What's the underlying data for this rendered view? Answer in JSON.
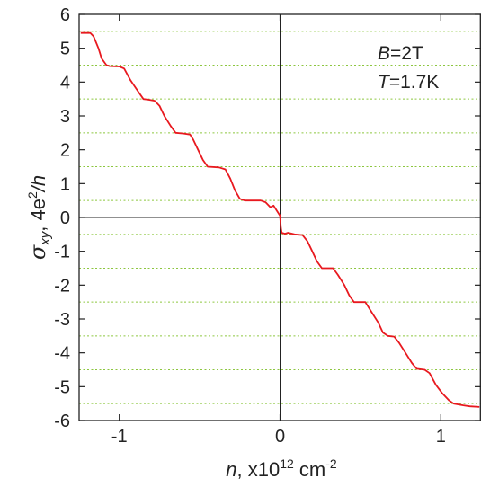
{
  "chart_data": {
    "type": "line",
    "title": "",
    "xlabel": {
      "var": "n",
      "rest": ", x10",
      "exp": "12",
      "unit": " cm",
      "unit_exp": "-2"
    },
    "ylabel": {
      "var": "σ",
      "sub": "xy",
      "rest": ", 4e",
      "exp": "2",
      "tail": "/h"
    },
    "xlim": [
      -1.25,
      1.25
    ],
    "ylim": [
      -6,
      6
    ],
    "xticks": [
      {
        "value": -1,
        "label": "-1"
      },
      {
        "value": 0,
        "label": "0"
      },
      {
        "value": 1,
        "label": "1"
      }
    ],
    "yticks": [
      {
        "value": 6,
        "label": "6"
      },
      {
        "value": 5,
        "label": "5"
      },
      {
        "value": 4,
        "label": "4"
      },
      {
        "value": 3,
        "label": "3"
      },
      {
        "value": 2,
        "label": "2"
      },
      {
        "value": 1,
        "label": "1"
      },
      {
        "value": 0,
        "label": "0"
      },
      {
        "value": -1,
        "label": "-1"
      },
      {
        "value": -2,
        "label": "-2"
      },
      {
        "value": -3,
        "label": "-3"
      },
      {
        "value": -4,
        "label": "-4"
      },
      {
        "value": -5,
        "label": "-5"
      },
      {
        "value": -6,
        "label": "-6"
      }
    ],
    "reference_lines": [
      5.5,
      4.5,
      3.5,
      2.5,
      1.5,
      0.5,
      -0.5,
      -1.5,
      -2.5,
      -3.5,
      -4.5,
      -5.5
    ],
    "annotations": [
      {
        "var": "B",
        "text": "=2T"
      },
      {
        "var": "T",
        "text": "=1.7K"
      }
    ],
    "series": [
      {
        "color": "#e8191f",
        "points": [
          [
            -1.24,
            5.45
          ],
          [
            -1.18,
            5.45
          ],
          [
            -1.16,
            5.35
          ],
          [
            -1.13,
            5.0
          ],
          [
            -1.11,
            4.7
          ],
          [
            -1.08,
            4.5
          ],
          [
            -1.06,
            4.47
          ],
          [
            -1.0,
            4.46
          ],
          [
            -0.97,
            4.4
          ],
          [
            -0.93,
            4.05
          ],
          [
            -0.88,
            3.7
          ],
          [
            -0.85,
            3.5
          ],
          [
            -0.82,
            3.48
          ],
          [
            -0.78,
            3.45
          ],
          [
            -0.75,
            3.3
          ],
          [
            -0.72,
            3.0
          ],
          [
            -0.68,
            2.7
          ],
          [
            -0.65,
            2.5
          ],
          [
            -0.6,
            2.48
          ],
          [
            -0.56,
            2.45
          ],
          [
            -0.54,
            2.3
          ],
          [
            -0.51,
            2.0
          ],
          [
            -0.48,
            1.7
          ],
          [
            -0.45,
            1.5
          ],
          [
            -0.38,
            1.48
          ],
          [
            -0.34,
            1.42
          ],
          [
            -0.31,
            1.15
          ],
          [
            -0.28,
            0.8
          ],
          [
            -0.25,
            0.55
          ],
          [
            -0.22,
            0.5
          ],
          [
            -0.12,
            0.5
          ],
          [
            -0.09,
            0.45
          ],
          [
            -0.06,
            0.3
          ],
          [
            -0.04,
            0.35
          ],
          [
            -0.02,
            0.2
          ],
          [
            0.0,
            0.05
          ],
          [
            0.005,
            -0.3
          ],
          [
            0.01,
            -0.45
          ],
          [
            0.03,
            -0.48
          ],
          [
            0.05,
            -0.45
          ],
          [
            0.09,
            -0.5
          ],
          [
            0.14,
            -0.52
          ],
          [
            0.17,
            -0.7
          ],
          [
            0.2,
            -1.0
          ],
          [
            0.23,
            -1.3
          ],
          [
            0.26,
            -1.5
          ],
          [
            0.33,
            -1.5
          ],
          [
            0.36,
            -1.7
          ],
          [
            0.4,
            -2.0
          ],
          [
            0.43,
            -2.3
          ],
          [
            0.46,
            -2.5
          ],
          [
            0.53,
            -2.5
          ],
          [
            0.57,
            -2.8
          ],
          [
            0.61,
            -3.1
          ],
          [
            0.64,
            -3.4
          ],
          [
            0.67,
            -3.5
          ],
          [
            0.71,
            -3.52
          ],
          [
            0.74,
            -3.7
          ],
          [
            0.78,
            -4.0
          ],
          [
            0.82,
            -4.3
          ],
          [
            0.85,
            -4.47
          ],
          [
            0.9,
            -4.5
          ],
          [
            0.93,
            -4.6
          ],
          [
            0.97,
            -4.95
          ],
          [
            1.01,
            -5.2
          ],
          [
            1.05,
            -5.4
          ],
          [
            1.08,
            -5.5
          ],
          [
            1.14,
            -5.55
          ],
          [
            1.18,
            -5.58
          ],
          [
            1.24,
            -5.6
          ]
        ]
      }
    ]
  }
}
